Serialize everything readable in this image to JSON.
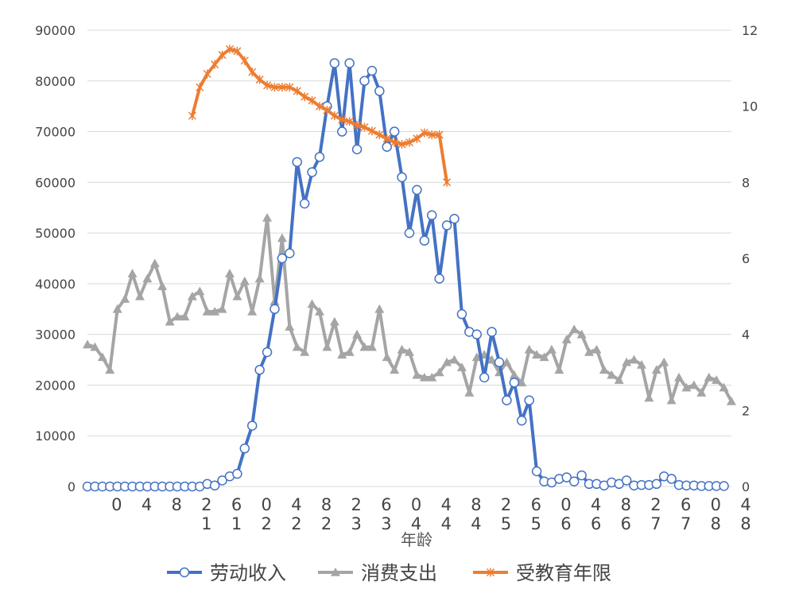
{
  "chart_data": {
    "type": "line",
    "xlabel": "年龄",
    "x_tick_labels": [
      {
        "index": 2,
        "lines": [
          "0"
        ]
      },
      {
        "index": 6,
        "lines": [
          "4"
        ]
      },
      {
        "index": 10,
        "lines": [
          "8"
        ]
      },
      {
        "index": 14,
        "lines": [
          "2",
          "1"
        ]
      },
      {
        "index": 18,
        "lines": [
          "6",
          "1"
        ]
      },
      {
        "index": 22,
        "lines": [
          "0",
          "2"
        ]
      },
      {
        "index": 26,
        "lines": [
          "4",
          "2"
        ]
      },
      {
        "index": 30,
        "lines": [
          "8",
          "2"
        ]
      },
      {
        "index": 34,
        "lines": [
          "2",
          "3"
        ]
      },
      {
        "index": 38,
        "lines": [
          "6",
          "3"
        ]
      },
      {
        "index": 42,
        "lines": [
          "0",
          "4"
        ]
      },
      {
        "index": 46,
        "lines": [
          "4",
          "4"
        ]
      },
      {
        "index": 50,
        "lines": [
          "8",
          "4"
        ]
      },
      {
        "index": 54,
        "lines": [
          "2",
          "5"
        ]
      },
      {
        "index": 58,
        "lines": [
          "6",
          "5"
        ]
      },
      {
        "index": 62,
        "lines": [
          "0",
          "6"
        ]
      },
      {
        "index": 66,
        "lines": [
          "4",
          "6"
        ]
      },
      {
        "index": 70,
        "lines": [
          "8",
          "6"
        ]
      },
      {
        "index": 74,
        "lines": [
          "2",
          "7"
        ]
      },
      {
        "index": 78,
        "lines": [
          "6",
          "7"
        ]
      },
      {
        "index": 82,
        "lines": [
          "0",
          "8"
        ]
      },
      {
        "index": 86,
        "lines": [
          "4",
          "8"
        ]
      }
    ],
    "y_left": {
      "min": 0,
      "max": 90000,
      "ticks": [
        0,
        10000,
        20000,
        30000,
        40000,
        50000,
        60000,
        70000,
        80000,
        90000
      ]
    },
    "y_right": {
      "min": 0,
      "max": 12,
      "ticks": [
        0,
        2,
        4,
        6,
        8,
        10,
        12
      ]
    },
    "grid": true,
    "legend_position": "bottom",
    "series": [
      {
        "name": "劳动收入",
        "axis": "left",
        "color": "#4472C4",
        "marker": "circle",
        "start_index": 0,
        "values": [
          0,
          0,
          0,
          0,
          0,
          0,
          0,
          0,
          0,
          0,
          0,
          0,
          0,
          0,
          0,
          0,
          500,
          200,
          1200,
          2000,
          2500,
          7500,
          12000,
          23000,
          26500,
          35000,
          45000,
          46000,
          64000,
          55800,
          62000,
          65000,
          75000,
          83500,
          70000,
          83500,
          66500,
          80000,
          82000,
          78000,
          67000,
          70000,
          61000,
          50000,
          58500,
          48500,
          53500,
          41000,
          51500,
          52800,
          34000,
          30500,
          30000,
          21500,
          30500,
          24500,
          17000,
          20500,
          13000,
          17000,
          3000,
          1000,
          800,
          1500,
          1800,
          1000,
          2200,
          500,
          500,
          200,
          800,
          500,
          1200,
          200,
          300,
          300,
          500,
          2000,
          1500,
          300,
          200,
          200,
          100,
          100,
          100,
          100
        ]
      },
      {
        "name": "消费支出",
        "axis": "left",
        "color": "#A5A5A5",
        "marker": "triangle",
        "start_index": 0,
        "values": [
          28000,
          27500,
          25500,
          23000,
          35000,
          37000,
          42000,
          37500,
          41000,
          44000,
          39500,
          32500,
          33500,
          33500,
          37500,
          38500,
          34500,
          34500,
          35000,
          42000,
          37500,
          40500,
          34500,
          41000,
          53000,
          36500,
          49000,
          31500,
          27500,
          26500,
          36000,
          34500,
          27500,
          32500,
          26000,
          26500,
          30000,
          27500,
          27500,
          35000,
          25500,
          23000,
          27000,
          26500,
          22000,
          21500,
          21500,
          22500,
          24500,
          25000,
          23500,
          18500,
          25500,
          26000,
          25000,
          22500,
          24500,
          22000,
          20500,
          27000,
          26000,
          25500,
          27000,
          23000,
          29000,
          31000,
          30000,
          26500,
          27000,
          23000,
          22000,
          21000,
          24500,
          25000,
          24000,
          17500,
          23000,
          24500,
          17000,
          21500,
          19500,
          20000,
          18500,
          21500,
          21000,
          19500,
          16800
        ]
      },
      {
        "name": "受教育年限",
        "axis": "right",
        "color": "#ED7D31",
        "marker": "x",
        "start_index": 14,
        "values": [
          9.75,
          10.5,
          10.85,
          11.1,
          11.35,
          11.5,
          11.45,
          11.2,
          10.9,
          10.7,
          10.55,
          10.5,
          10.5,
          10.5,
          10.4,
          10.25,
          10.15,
          10.0,
          9.9,
          9.75,
          9.65,
          9.6,
          9.5,
          9.45,
          9.35,
          9.25,
          9.15,
          9.05,
          9.0,
          9.05,
          9.15,
          9.3,
          9.25,
          9.25,
          8.0
        ]
      }
    ]
  }
}
